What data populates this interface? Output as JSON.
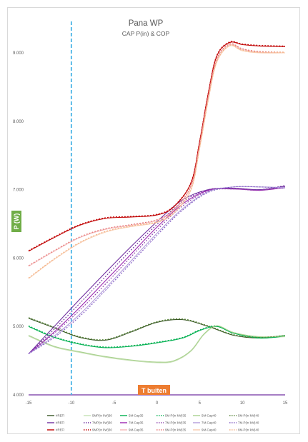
{
  "chart_data": {
    "type": "line",
    "title": "Pana WP",
    "subtitle": "CAP P(in) & COP",
    "ylabel": "P (W)",
    "xlabel": "T buiten",
    "xlim": [
      -15,
      15
    ],
    "ylim": [
      4.0,
      9.3
    ],
    "x_ticks": [
      "-15",
      "-10",
      "-5",
      "0",
      "5",
      "10",
      "15"
    ],
    "y_ticks": [
      "4.000",
      "5.000",
      "6.000",
      "7.000",
      "8.000",
      "9.000"
    ],
    "vline_x": -10,
    "grid": false,
    "legend_position": "bottom",
    "series": [
      {
        "name": "#REF!",
        "color": "#375623",
        "dash": "",
        "x": [
          -15,
          -12,
          -9,
          -6,
          -3,
          0,
          3,
          6,
          9,
          12,
          15
        ],
        "values": [
          5.12,
          4.98,
          4.84,
          4.8,
          4.92,
          5.06,
          5.1,
          5.0,
          4.87,
          4.83,
          4.86
        ]
      },
      {
        "name": "5MP(in kW)30",
        "color": "#c5e0b3",
        "dash": "",
        "x": [
          -15,
          -12,
          -9,
          -6,
          -3,
          0,
          2,
          4,
          5.5,
          7,
          9,
          12,
          15
        ],
        "values": [
          4.86,
          4.7,
          4.62,
          4.55,
          4.5,
          4.47,
          4.49,
          4.64,
          4.88,
          5.0,
          4.9,
          4.84,
          4.85
        ]
      },
      {
        "name": "5M-Cap35",
        "color": "#00b050",
        "dash": "",
        "x": [
          -15,
          -12,
          -9,
          -6,
          -3,
          0,
          3,
          5,
          7,
          9,
          12,
          15
        ],
        "values": [
          5.0,
          4.84,
          4.74,
          4.69,
          4.71,
          4.76,
          4.83,
          4.94,
          5.0,
          4.9,
          4.83,
          4.86
        ]
      },
      {
        "name": "5M-P(in kW)35",
        "color": "#00b050",
        "dash": "2,2",
        "x": [
          -15,
          -12,
          -9,
          -6,
          -3,
          0,
          3,
          5,
          7,
          9,
          12,
          15
        ],
        "values": [
          5.01,
          4.85,
          4.75,
          4.7,
          4.72,
          4.77,
          4.84,
          4.95,
          5.01,
          4.91,
          4.84,
          4.87
        ]
      },
      {
        "name": "5M-Cap40",
        "color": "#a9d18e",
        "dash": "",
        "x": [
          -15,
          -12,
          -9,
          -6,
          -3,
          0,
          2,
          4,
          5.5,
          7,
          9,
          12,
          15
        ],
        "values": [
          4.87,
          4.71,
          4.63,
          4.56,
          4.51,
          4.48,
          4.5,
          4.65,
          4.89,
          5.01,
          4.91,
          4.85,
          4.86
        ]
      },
      {
        "name": "5M-P(in kW)40",
        "color": "#548235",
        "dash": "2,2",
        "x": [
          -15,
          -12,
          -9,
          -6,
          -3,
          0,
          3,
          6,
          9,
          12,
          15
        ],
        "values": [
          5.13,
          4.99,
          4.85,
          4.81,
          4.93,
          5.07,
          5.11,
          5.01,
          4.88,
          4.84,
          4.87
        ]
      },
      {
        "name": "#REF!",
        "color": "#7030a0",
        "dash": "",
        "x": [
          -15,
          -12,
          -9,
          -6,
          -3,
          0,
          3,
          6,
          9,
          12,
          15
        ],
        "values": [
          4.6,
          5.0,
          5.4,
          5.79,
          6.17,
          6.53,
          6.85,
          7.0,
          7.02,
          7.0,
          7.05
        ]
      },
      {
        "name": "7MP(in kW)30",
        "color": "#7030a0",
        "dash": "2,2",
        "x": [
          -15,
          -12,
          -9,
          -6,
          -3,
          0,
          3,
          6,
          9,
          12,
          15
        ],
        "values": [
          4.6,
          4.96,
          5.34,
          5.73,
          6.12,
          6.49,
          6.82,
          7.0,
          7.02,
          7.0,
          7.06
        ]
      },
      {
        "name": "7M-Cap35",
        "color": "#9c27b0",
        "dash": "",
        "x": [
          -15,
          -12,
          -9,
          -6,
          -3,
          0,
          3,
          6,
          9,
          12,
          15
        ],
        "values": [
          4.6,
          4.92,
          5.28,
          5.67,
          6.06,
          6.45,
          6.79,
          6.99,
          7.01,
          6.99,
          7.03
        ]
      },
      {
        "name": "7M-P(in kW)35",
        "color": "#8e44ad",
        "dash": "2,2",
        "x": [
          -15,
          -12,
          -9,
          -6,
          -3,
          0,
          3,
          6,
          9,
          12,
          15
        ],
        "values": [
          4.6,
          4.9,
          5.24,
          5.62,
          6.02,
          6.41,
          6.76,
          6.98,
          7.01,
          6.99,
          7.04
        ]
      },
      {
        "name": "7M-Cap40",
        "color": "#b39ddb",
        "dash": "",
        "x": [
          -15,
          -12,
          -9,
          -6,
          -3,
          0,
          3,
          6,
          9,
          12,
          15
        ],
        "values": [
          4.6,
          4.86,
          5.18,
          5.56,
          5.96,
          6.36,
          6.72,
          6.97,
          7.04,
          7.04,
          7.03
        ]
      },
      {
        "name": "7M-P(in kW)40",
        "color": "#7e57c2",
        "dash": "2,2",
        "x": [
          -15,
          -12,
          -9,
          -6,
          -3,
          0,
          3,
          6,
          9,
          12,
          15
        ],
        "values": [
          4.6,
          4.84,
          5.15,
          5.53,
          5.93,
          6.33,
          6.7,
          6.96,
          7.04,
          7.04,
          7.02
        ]
      },
      {
        "name": "#REF!",
        "color": "#c00000",
        "dash": "",
        "x": [
          -15,
          -12,
          -9,
          -6,
          -3,
          0,
          2,
          4,
          5,
          6,
          7,
          8.5,
          10,
          12,
          15
        ],
        "values": [
          6.1,
          6.3,
          6.48,
          6.58,
          6.6,
          6.63,
          6.75,
          7.1,
          7.7,
          8.4,
          8.95,
          9.15,
          9.12,
          9.1,
          9.09
        ]
      },
      {
        "name": "9MP(in kW)30",
        "color": "#c00000",
        "dash": "2,2",
        "x": [
          -15,
          -12,
          -9,
          -6,
          -3,
          0,
          2,
          4,
          5,
          6,
          7,
          8.5,
          10,
          12,
          15
        ],
        "values": [
          6.11,
          6.31,
          6.49,
          6.59,
          6.61,
          6.64,
          6.76,
          7.11,
          7.71,
          8.41,
          8.96,
          9.16,
          9.13,
          9.11,
          9.1
        ]
      },
      {
        "name": "9M-Cap35",
        "color": "#f4b6b6",
        "dash": "",
        "x": [
          -15,
          -12,
          -9,
          -6,
          -3,
          0,
          2,
          4,
          5,
          6,
          7,
          8.5,
          10,
          12,
          15
        ],
        "values": [
          5.88,
          6.1,
          6.3,
          6.42,
          6.48,
          6.55,
          6.7,
          7.05,
          7.65,
          8.35,
          8.9,
          9.12,
          9.05,
          9.01,
          9.0
        ]
      },
      {
        "name": "9M-P(in kW)35",
        "color": "#e57373",
        "dash": "2,2",
        "x": [
          -15,
          -12,
          -9,
          -6,
          -3,
          0,
          2,
          4,
          5,
          6,
          7,
          8.5,
          10,
          12,
          15
        ],
        "values": [
          5.89,
          6.11,
          6.31,
          6.43,
          6.49,
          6.56,
          6.71,
          7.06,
          7.66,
          8.36,
          8.91,
          9.13,
          9.06,
          9.02,
          9.01
        ]
      },
      {
        "name": "9M-Cap40",
        "color": "#f8cbad",
        "dash": "",
        "x": [
          -15,
          -12,
          -9,
          -6,
          -3,
          0,
          2,
          4,
          5,
          6,
          7,
          8.5,
          10,
          12,
          15
        ],
        "values": [
          5.7,
          5.98,
          6.22,
          6.38,
          6.46,
          6.52,
          6.66,
          7.0,
          7.6,
          8.3,
          8.86,
          9.1,
          9.03,
          9.0,
          9.0
        ]
      },
      {
        "name": "9M-P(in kW)40",
        "color": "#f4b183",
        "dash": "2,2",
        "x": [
          -15,
          -12,
          -9,
          -6,
          -3,
          0,
          2,
          4,
          5,
          6,
          7,
          8.5,
          10,
          12,
          15
        ],
        "values": [
          5.71,
          5.99,
          6.23,
          6.39,
          6.47,
          6.53,
          6.67,
          7.01,
          7.61,
          8.31,
          8.87,
          9.11,
          9.04,
          9.01,
          9.01
        ]
      }
    ],
    "colors": {
      "vline": "#4ab4e6",
      "ylabel_bg": "#70ad47",
      "xlabel_bg": "#ed7d31",
      "baseline": "#7030a0"
    }
  }
}
